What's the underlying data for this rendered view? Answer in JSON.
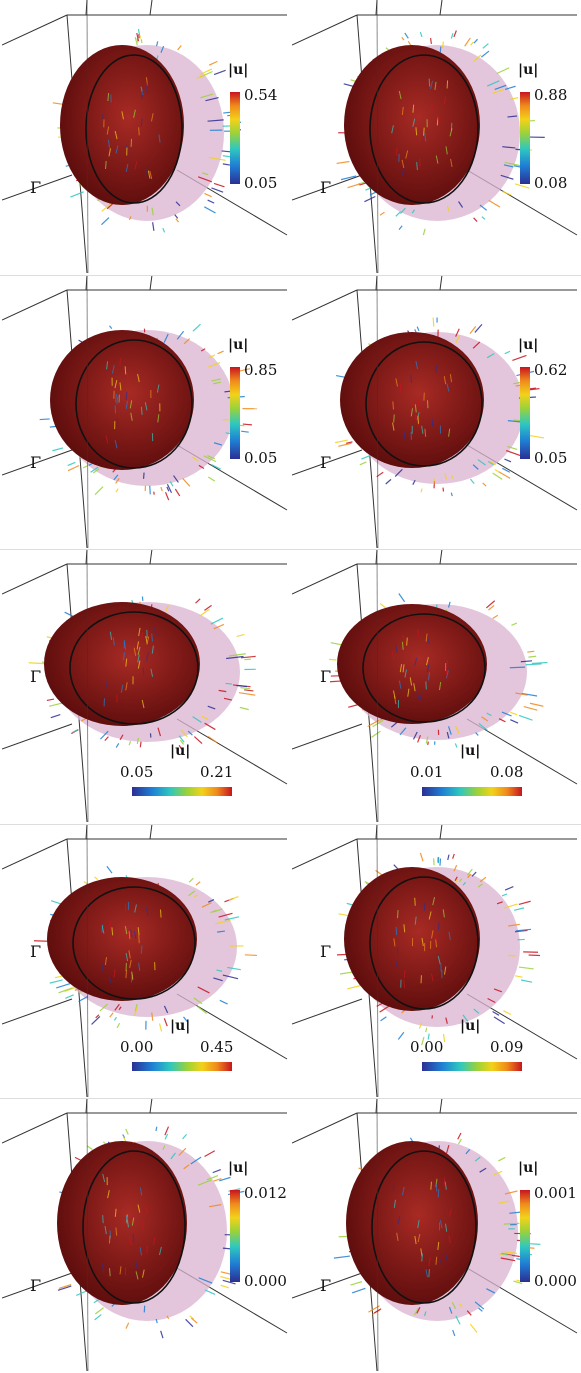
{
  "figure": {
    "boundary_symbol": "Γ",
    "colorbar_title": "|u|",
    "colors": {
      "body": "#8e1c1c",
      "body_dark": "#5a0c0c",
      "halo": "#d9b3cf",
      "axes": "#333333"
    },
    "panels": [
      {
        "id": "p1",
        "row": 1,
        "col": 1,
        "colorbar": "vertical",
        "min": "0.05",
        "max": "0.54"
      },
      {
        "id": "p2",
        "row": 1,
        "col": 2,
        "colorbar": "vertical",
        "min": "0.08",
        "max": "0.88"
      },
      {
        "id": "p3",
        "row": 2,
        "col": 1,
        "colorbar": "vertical",
        "min": "0.05",
        "max": "0.85"
      },
      {
        "id": "p4",
        "row": 2,
        "col": 2,
        "colorbar": "vertical",
        "min": "0.05",
        "max": "0.62"
      },
      {
        "id": "p5",
        "row": 3,
        "col": 1,
        "colorbar": "horizontal",
        "min": "0.05",
        "max": "0.21"
      },
      {
        "id": "p6",
        "row": 3,
        "col": 2,
        "colorbar": "horizontal",
        "min": "0.01",
        "max": "0.08"
      },
      {
        "id": "p7",
        "row": 4,
        "col": 1,
        "colorbar": "horizontal",
        "min": "0.00",
        "max": "0.45"
      },
      {
        "id": "p8",
        "row": 4,
        "col": 2,
        "colorbar": "horizontal",
        "min": "0.00",
        "max": "0.09"
      },
      {
        "id": "p9",
        "row": 5,
        "col": 1,
        "colorbar": "vertical",
        "min": "0.000",
        "max": "0.012"
      },
      {
        "id": "p10",
        "row": 5,
        "col": 2,
        "colorbar": "vertical",
        "min": "0.000",
        "max": "0.001"
      }
    ]
  }
}
